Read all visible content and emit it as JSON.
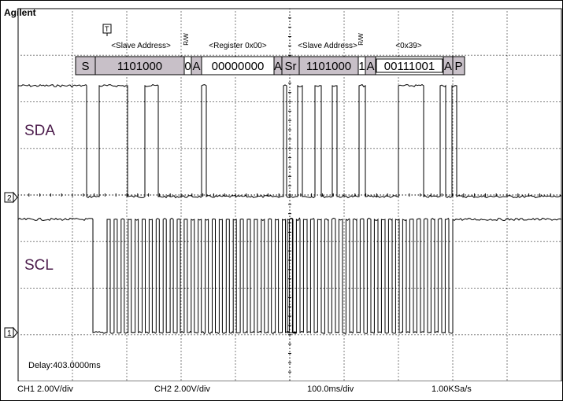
{
  "brand": "Agilent",
  "trigger_marker": "T",
  "channels": {
    "upper": {
      "label": "SDA",
      "marker": "2"
    },
    "lower": {
      "label": "SCL",
      "marker": "1"
    }
  },
  "decode": {
    "headers": [
      {
        "text": "<Slave Address>",
        "kind": "header"
      },
      {
        "text": "R/W",
        "kind": "rw"
      },
      {
        "text": "<Register 0x00>",
        "kind": "header"
      },
      {
        "text": "<Slave Address>",
        "kind": "header"
      },
      {
        "text": "R/W",
        "kind": "rw"
      },
      {
        "text": "<0x39>",
        "kind": "header"
      }
    ],
    "cells": [
      {
        "text": "S",
        "shade": "dark"
      },
      {
        "text": "1101000",
        "shade": "dark"
      },
      {
        "text": "0",
        "shade": "light"
      },
      {
        "text": "A",
        "shade": "dark"
      },
      {
        "text": "00000000",
        "shade": "light"
      },
      {
        "text": "A",
        "shade": "dark"
      },
      {
        "text": "Sr",
        "shade": "dark"
      },
      {
        "text": "1101000",
        "shade": "dark"
      },
      {
        "text": "1",
        "shade": "light"
      },
      {
        "text": "A",
        "shade": "dark"
      },
      {
        "text": "00111001",
        "shade": "light"
      },
      {
        "text": "A",
        "shade": "dark"
      },
      {
        "text": "P",
        "shade": "dark"
      }
    ]
  },
  "delay": "Delay:403.0000ms",
  "status": {
    "ch1": "CH1 2.00V/div",
    "ch2": "CH2 2.00V/div",
    "timebase": "100.0ms/div",
    "sample_rate": "1.00KSa/s"
  },
  "colors": {
    "grid": "#000000",
    "trace": "#000000",
    "decode_dark": "#c8c0c8",
    "decode_light": "#ffffff",
    "label": "#4a1a4a"
  }
}
